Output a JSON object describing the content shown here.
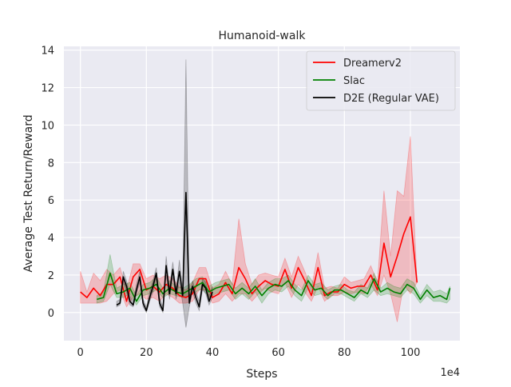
{
  "chart_data": {
    "type": "line",
    "title": "Humanoid-walk",
    "xlabel": "Steps",
    "ylabel": "Average Test Return/Reward",
    "x_scale_label": "1e4",
    "xlim": [
      -5,
      115
    ],
    "ylim": [
      -1.5,
      14.2
    ],
    "xticks": [
      0,
      20,
      40,
      60,
      80,
      100
    ],
    "yticks": [
      0,
      2,
      4,
      6,
      8,
      10,
      12,
      14
    ],
    "grid": true,
    "legend_position": "top-right",
    "colors": {
      "background": "#eaeaf2",
      "grid": "#ffffff",
      "Dreamerv2": "#ff0000",
      "Slac": "#008000",
      "D2E (Regular VAE)": "#000000"
    },
    "series": [
      {
        "name": "Dreamerv2",
        "x": [
          0,
          2,
          4,
          6,
          8,
          10,
          12,
          14,
          16,
          18,
          20,
          22,
          24,
          26,
          28,
          30,
          32,
          34,
          36,
          38,
          40,
          42,
          44,
          46,
          48,
          50,
          52,
          54,
          56,
          58,
          60,
          62,
          64,
          66,
          68,
          70,
          72,
          74,
          76,
          78,
          80,
          82,
          84,
          86,
          88,
          90,
          92,
          94,
          96,
          98,
          100,
          102
        ],
        "values": [
          1.1,
          0.8,
          1.3,
          0.9,
          1.5,
          1.5,
          1.9,
          0.6,
          1.9,
          2.3,
          1.2,
          1.4,
          1.1,
          1.5,
          1.3,
          0.9,
          0.8,
          1.0,
          1.8,
          1.8,
          0.8,
          1.0,
          1.6,
          1.0,
          2.4,
          1.8,
          1.0,
          1.4,
          1.7,
          1.5,
          1.4,
          2.3,
          1.3,
          2.4,
          1.7,
          0.9,
          2.4,
          0.9,
          1.1,
          1.1,
          1.5,
          1.3,
          1.4,
          1.4,
          2.0,
          1.2,
          3.7,
          1.9,
          3.0,
          4.2,
          5.1,
          1.6
        ],
        "lower": [
          0.5,
          0.5,
          0.5,
          0.5,
          0.6,
          1.0,
          1.2,
          0.3,
          0.8,
          1.0,
          0.7,
          0.8,
          0.6,
          1.0,
          0.8,
          0.5,
          0.5,
          0.6,
          1.2,
          1.2,
          0.5,
          0.6,
          1.0,
          0.6,
          1.0,
          1.0,
          0.6,
          1.0,
          1.3,
          1.1,
          1.0,
          1.6,
          0.8,
          1.5,
          1.1,
          0.6,
          1.4,
          0.6,
          0.9,
          0.9,
          1.1,
          1.0,
          1.1,
          1.0,
          1.5,
          0.9,
          2.0,
          1.0,
          -0.5,
          1.5,
          1.0,
          1.6
        ],
        "upper": [
          2.2,
          1.1,
          2.1,
          1.7,
          2.3,
          2.0,
          2.4,
          1.2,
          2.6,
          2.6,
          1.8,
          2.0,
          1.8,
          2.0,
          1.8,
          1.4,
          1.2,
          1.6,
          2.4,
          2.4,
          1.3,
          1.5,
          2.2,
          1.5,
          5.0,
          2.6,
          1.5,
          2.0,
          2.1,
          2.0,
          1.9,
          2.9,
          1.9,
          3.0,
          2.2,
          1.3,
          3.2,
          1.3,
          1.4,
          1.3,
          1.9,
          1.6,
          1.7,
          1.8,
          2.5,
          1.6,
          6.5,
          3.0,
          6.5,
          6.2,
          9.4,
          1.6
        ]
      },
      {
        "name": "Slac",
        "x": [
          5,
          7,
          9,
          11,
          13,
          15,
          17,
          19,
          21,
          23,
          25,
          27,
          29,
          31,
          33,
          35,
          37,
          39,
          41,
          43,
          45,
          47,
          49,
          51,
          53,
          55,
          57,
          59,
          61,
          63,
          65,
          67,
          69,
          71,
          73,
          75,
          77,
          79,
          81,
          83,
          85,
          87,
          89,
          91,
          93,
          95,
          97,
          99,
          101,
          103,
          105,
          107,
          109,
          111,
          112
        ],
        "values": [
          0.7,
          0.8,
          2.1,
          1.0,
          1.1,
          1.3,
          0.6,
          1.2,
          1.3,
          1.5,
          1.0,
          1.3,
          1.1,
          1.0,
          1.2,
          1.4,
          1.6,
          1.1,
          1.3,
          1.4,
          1.5,
          1.0,
          1.3,
          1.0,
          1.4,
          0.9,
          1.3,
          1.5,
          1.4,
          1.7,
          1.2,
          0.9,
          1.7,
          1.2,
          1.3,
          0.9,
          1.2,
          1.2,
          1.0,
          0.8,
          1.2,
          1.0,
          1.8,
          1.1,
          1.3,
          1.1,
          1.0,
          1.5,
          1.3,
          0.7,
          1.2,
          0.8,
          0.9,
          0.7,
          1.3
        ],
        "lower": [
          0.5,
          0.6,
          1.5,
          0.8,
          0.8,
          1.0,
          0.4,
          0.9,
          1.0,
          1.2,
          0.8,
          1.0,
          0.9,
          0.8,
          0.9,
          1.1,
          1.3,
          0.8,
          1.0,
          1.1,
          1.2,
          0.7,
          1.0,
          0.7,
          1.1,
          0.5,
          1.0,
          1.2,
          1.1,
          1.4,
          0.9,
          0.6,
          1.3,
          0.9,
          1.0,
          0.7,
          1.0,
          1.0,
          0.8,
          0.6,
          1.0,
          0.8,
          1.2,
          0.9,
          1.0,
          0.9,
          0.8,
          1.2,
          1.0,
          0.5,
          0.9,
          0.6,
          0.6,
          0.5,
          0.7
        ],
        "upper": [
          0.9,
          1.1,
          3.1,
          1.3,
          1.5,
          1.6,
          0.9,
          1.5,
          1.6,
          1.9,
          1.3,
          1.7,
          1.4,
          1.3,
          1.5,
          1.8,
          1.9,
          1.4,
          1.6,
          1.7,
          1.8,
          1.3,
          1.6,
          1.3,
          1.8,
          1.2,
          1.6,
          1.8,
          1.8,
          2.0,
          1.5,
          1.2,
          2.0,
          1.5,
          1.6,
          1.2,
          1.4,
          1.5,
          1.2,
          1.1,
          1.5,
          1.3,
          2.1,
          1.3,
          1.6,
          1.4,
          1.3,
          1.8,
          1.6,
          0.9,
          1.5,
          1.1,
          1.2,
          1.0,
          1.4
        ]
      },
      {
        "name": "D2E (Regular VAE)",
        "x": [
          11,
          12,
          13,
          14,
          15,
          16,
          17,
          18,
          19,
          20,
          21,
          22,
          23,
          24,
          25,
          26,
          27,
          28,
          29,
          30,
          31,
          32,
          33,
          34,
          35,
          36,
          37,
          38,
          39,
          40
        ],
        "values": [
          0.4,
          0.5,
          1.9,
          1.4,
          0.6,
          0.4,
          1.2,
          1.9,
          0.5,
          0.1,
          0.8,
          1.4,
          2.1,
          0.5,
          0.1,
          2.5,
          1.0,
          2.3,
          1.0,
          2.2,
          0.9,
          6.4,
          0.5,
          1.4,
          0.8,
          0.3,
          1.5,
          1.3,
          0.6,
          1.1
        ],
        "lower": [
          0.3,
          0.4,
          1.6,
          1.1,
          0.4,
          0.3,
          1.0,
          1.6,
          0.3,
          0.0,
          0.6,
          1.1,
          1.8,
          0.3,
          0.0,
          2.0,
          0.7,
          1.9,
          0.7,
          1.6,
          0.5,
          -0.8,
          0.3,
          1.1,
          0.5,
          0.1,
          1.2,
          1.0,
          0.4,
          0.8
        ],
        "upper": [
          0.6,
          0.7,
          2.2,
          1.7,
          0.9,
          0.6,
          1.5,
          2.2,
          0.7,
          0.3,
          1.1,
          1.7,
          2.4,
          0.8,
          0.3,
          3.0,
          1.3,
          2.7,
          1.3,
          2.8,
          1.3,
          13.5,
          0.8,
          1.7,
          1.1,
          0.6,
          1.8,
          1.6,
          0.9,
          1.4
        ]
      }
    ]
  }
}
